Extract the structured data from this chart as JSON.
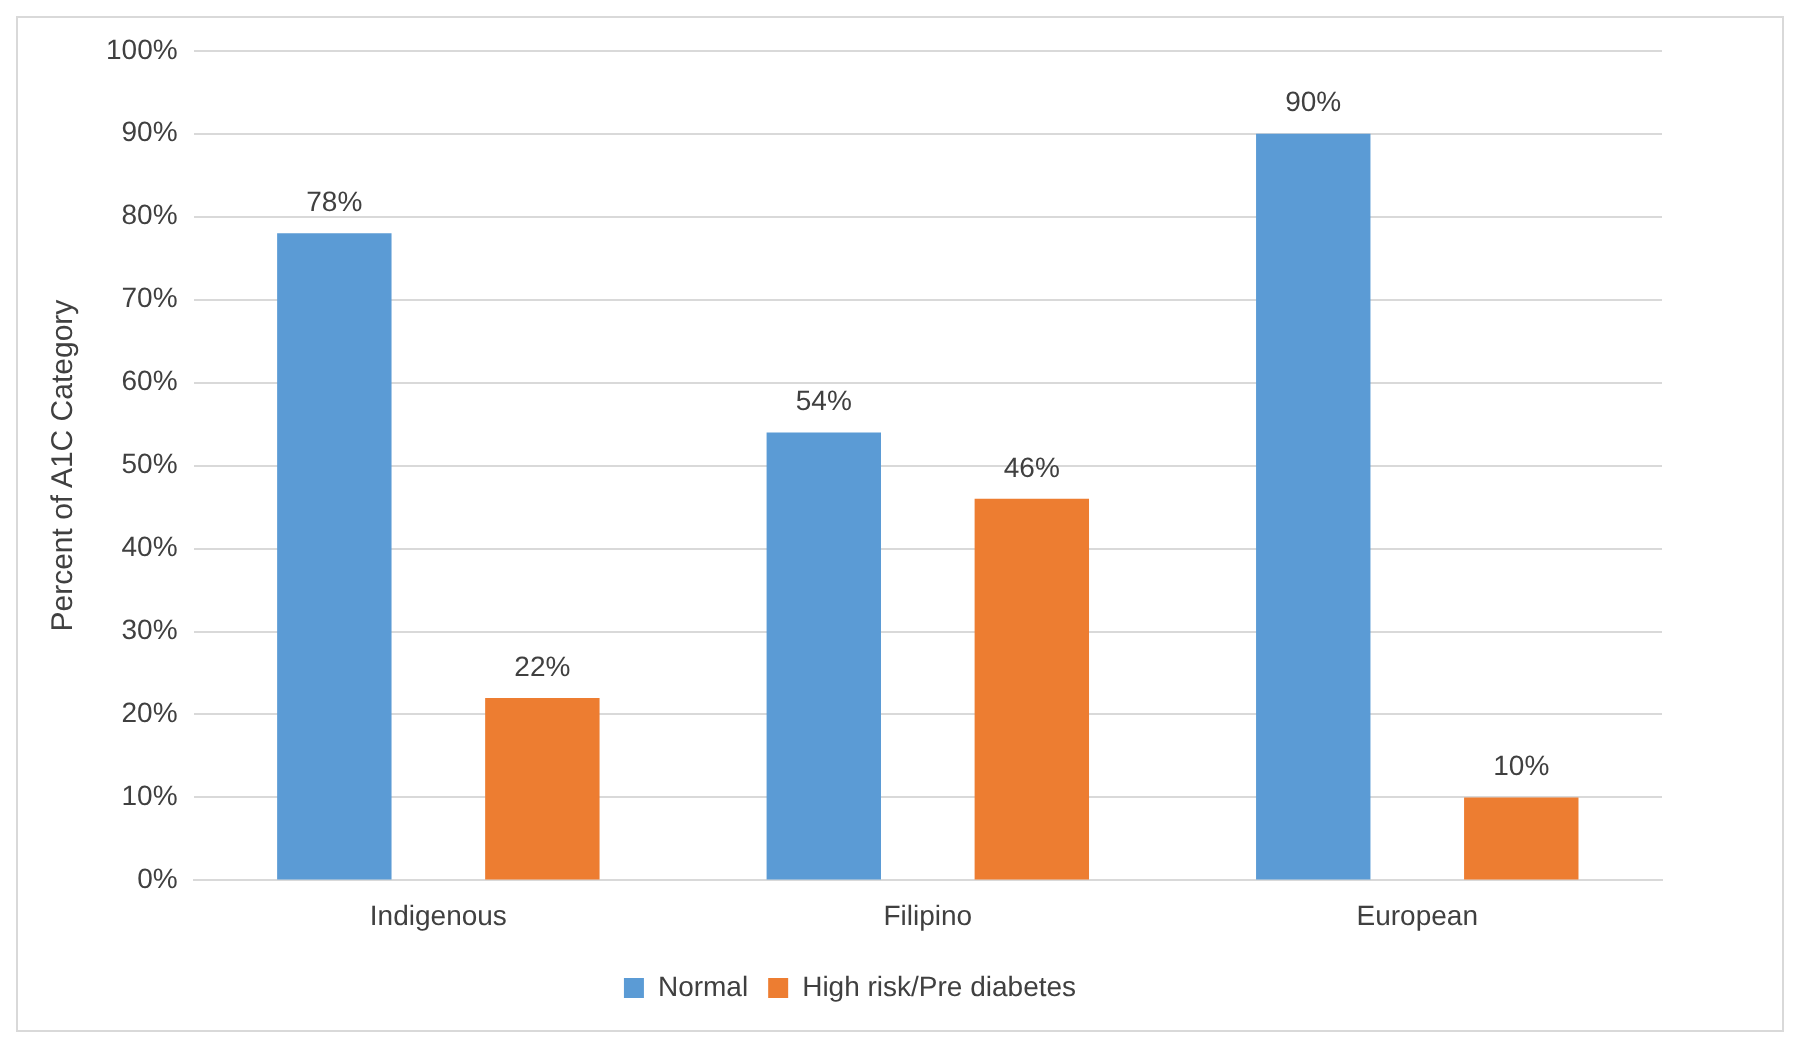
{
  "chart_data": {
    "type": "bar",
    "ylabel": "Percent of A1C Category",
    "categories": [
      "Indigenous",
      "Filipino",
      "European"
    ],
    "series": [
      {
        "name": "Normal",
        "color": "#5b9bd5",
        "values": [
          78,
          54,
          90
        ],
        "value_labels": [
          "78%",
          "54%",
          "90%"
        ]
      },
      {
        "name": "High risk/Pre diabetes",
        "color": "#ed7d31",
        "values": [
          22,
          46,
          10
        ],
        "value_labels": [
          "22%",
          "46%",
          "10%"
        ]
      }
    ],
    "ylim": [
      0,
      100
    ],
    "yticks": [
      {
        "value": 0,
        "label": "0%"
      },
      {
        "value": 10,
        "label": "10%"
      },
      {
        "value": 20,
        "label": "20%"
      },
      {
        "value": 30,
        "label": "30%"
      },
      {
        "value": 40,
        "label": "40%"
      },
      {
        "value": 50,
        "label": "50%"
      },
      {
        "value": 60,
        "label": "60%"
      },
      {
        "value": 70,
        "label": "70%"
      },
      {
        "value": 80,
        "label": "80%"
      },
      {
        "value": 90,
        "label": "90%"
      },
      {
        "value": 100,
        "label": "100%"
      }
    ],
    "grid": "y",
    "legend": "bottom"
  }
}
